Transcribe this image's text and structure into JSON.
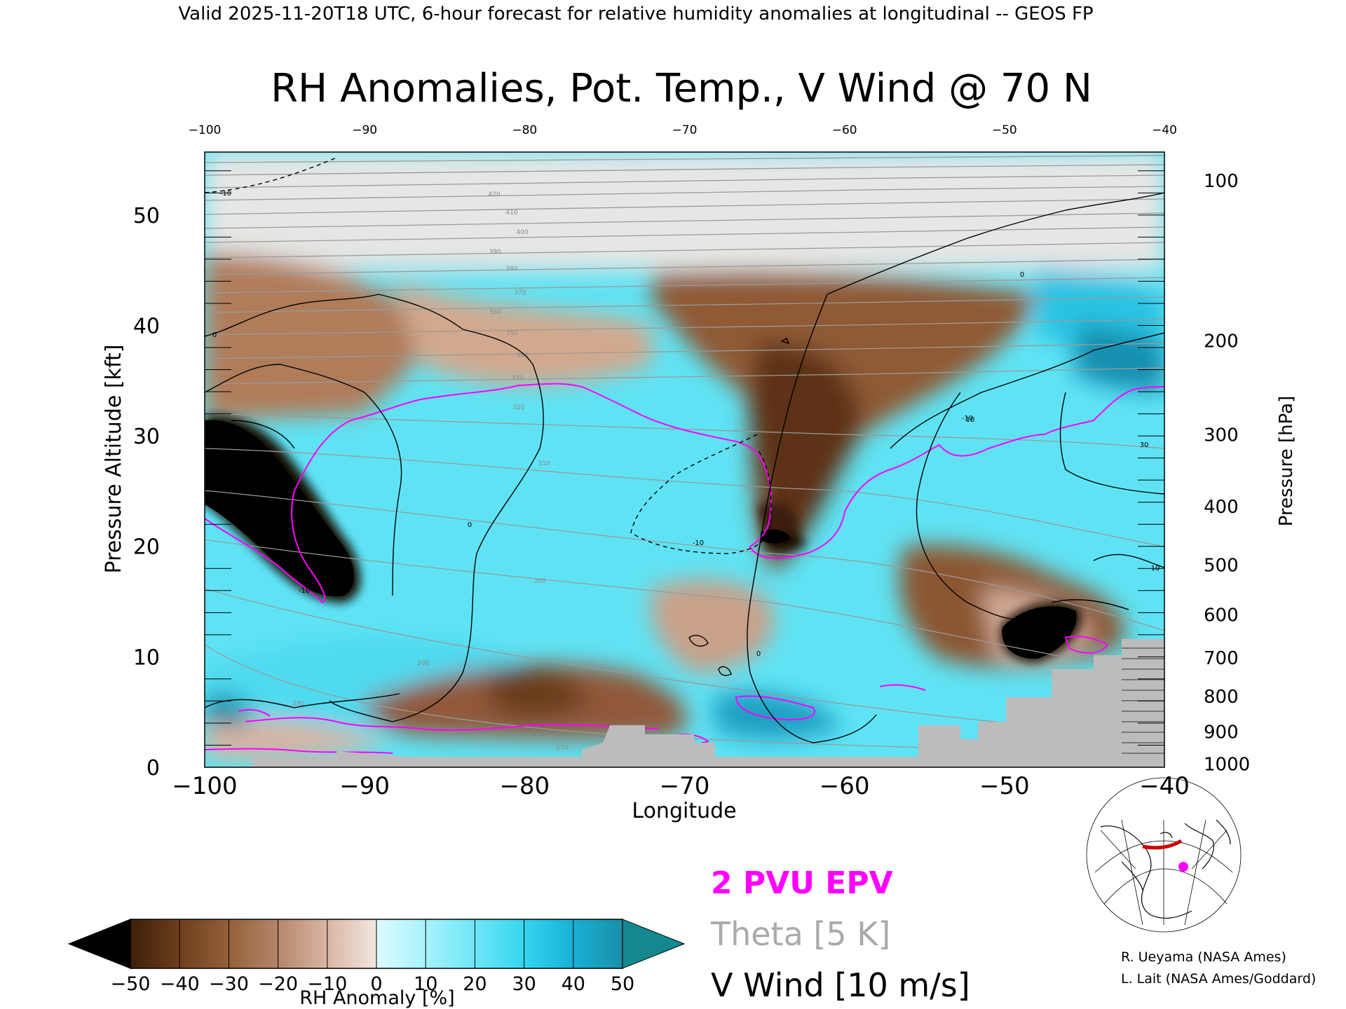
{
  "header": "Valid 2025-11-20T18 UTC, 6-hour forecast for relative humidity anomalies at longitudinal -- GEOS FP",
  "chart_data": {
    "type": "heatmap",
    "title": "RH Anomalies, Pot. Temp., V Wind @ 70 N",
    "xlabel": "Longitude",
    "ylabel_left": "Pressure Altitude [kft]",
    "ylabel_right": "Pressure [hPa]",
    "xlim": [
      -100,
      -40
    ],
    "ylim": [
      0,
      55.7
    ],
    "x_ticks": [
      -100,
      -90,
      -80,
      -70,
      -60,
      -50,
      -40
    ],
    "x_tick_labels": [
      "−100",
      "−90",
      "−80",
      "−70",
      "−60",
      "−50",
      "−40"
    ],
    "y_ticks": [
      0,
      10,
      20,
      30,
      40,
      50
    ],
    "right_ticks": [
      {
        "label": "100",
        "kft": 53.1
      },
      {
        "label": "200",
        "kft": 38.6
      },
      {
        "label": "300",
        "kft": 30.1
      },
      {
        "label": "400",
        "kft": 23.6
      },
      {
        "label": "500",
        "kft": 18.3
      },
      {
        "label": "600",
        "kft": 13.8
      },
      {
        "label": "700",
        "kft": 9.9
      },
      {
        "label": "800",
        "kft": 6.4
      },
      {
        "label": "900",
        "kft": 3.2
      },
      {
        "label": "1000",
        "kft": 0.3
      }
    ],
    "colorbar": {
      "label": "RH Anomaly [%]",
      "ticks": [
        "−50",
        "−40",
        "−30",
        "−20",
        "−10",
        "0",
        "10",
        "20",
        "30",
        "40",
        "50"
      ],
      "colors": [
        "#000000",
        "#3d1f0a",
        "#6e3e1c",
        "#94603a",
        "#b5866a",
        "#d9b6a3",
        "#f1e6e0",
        "#ddfbff",
        "#a6f2fb",
        "#6fe6f7",
        "#34d5ef",
        "#18b0d6",
        "#1a8fa8"
      ]
    },
    "regions": [
      {
        "name": "dry anomaly",
        "lon": -96,
        "kft": 20,
        "value": -50
      },
      {
        "name": "dry anomaly",
        "lon": -65,
        "kft": 21,
        "value": -50
      },
      {
        "name": "dry anomaly",
        "lon": -47,
        "kft": 12,
        "value": -50
      },
      {
        "name": "dry anomaly",
        "lon": -78,
        "kft": 7,
        "value": -35
      },
      {
        "name": "moist anomaly",
        "lon": -80,
        "kft": 25,
        "value": 25
      },
      {
        "name": "moist anomaly",
        "lon": -42,
        "kft": 34,
        "value": 45
      }
    ],
    "theta_labels": [
      "420",
      "410",
      "400",
      "390",
      "380",
      "370",
      "360",
      "350",
      "340",
      "330",
      "320",
      "310",
      "300",
      "290",
      "280",
      "270"
    ],
    "vwind_labels": [
      "-10",
      "0",
      "-10",
      "0",
      "-10",
      "-10",
      "0",
      "10",
      "30",
      "10",
      "0"
    ],
    "grey_terrain_kft": [
      {
        "lon": -100,
        "kft": 0
      },
      {
        "lon": -97,
        "kft": 1
      },
      {
        "lon": -92,
        "kft": 1
      },
      {
        "lon": -88,
        "kft": 1
      },
      {
        "lon": -74,
        "kft": 4
      },
      {
        "lon": -69,
        "kft": 2
      },
      {
        "lon": -55,
        "kft": 4
      },
      {
        "lon": -50,
        "kft": 6
      },
      {
        "lon": -46,
        "kft": 9
      },
      {
        "lon": -40,
        "kft": 12
      }
    ]
  },
  "legend": {
    "epv": "2 PVU EPV",
    "theta": "Theta [5 K]",
    "vwind": "V Wind [10 m/s]",
    "colors": {
      "epv": "#ff00ff",
      "theta": "#aaaaaa",
      "vwind": "#000000"
    }
  },
  "credits": [
    "R. Ueyama (NASA Ames)",
    "L. Lait (NASA Ames/Goddard)"
  ],
  "inset_map": {
    "icon": "globe-locator-icon",
    "marker_color": "#ff00ff",
    "section_color": "#cc0000"
  }
}
